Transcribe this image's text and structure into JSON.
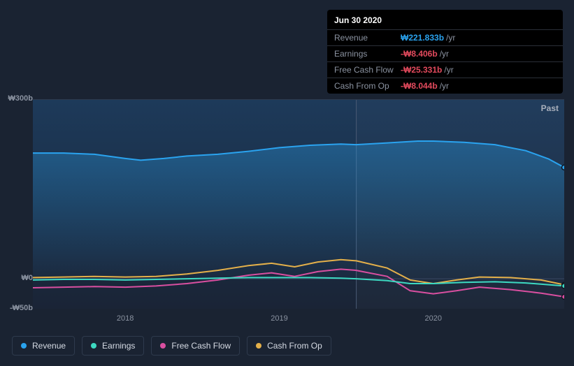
{
  "tooltip": {
    "date": "Jun 30 2020",
    "rows": [
      {
        "label": "Revenue",
        "value": "₩221.833b",
        "unit": "/yr",
        "color": "#2aa3ef"
      },
      {
        "label": "Earnings",
        "value": "-₩8.406b",
        "unit": "/yr",
        "color": "#e34a5d"
      },
      {
        "label": "Free Cash Flow",
        "value": "-₩25.331b",
        "unit": "/yr",
        "color": "#e34a5d"
      },
      {
        "label": "Cash From Op",
        "value": "-₩8.044b",
        "unit": "/yr",
        "color": "#e34a5d"
      }
    ]
  },
  "chart": {
    "type": "area-line",
    "ylim": [
      -50,
      300
    ],
    "y_ticks": [
      {
        "v": 300,
        "label": "₩300b"
      },
      {
        "v": 0,
        "label": "₩0"
      },
      {
        "v": -50,
        "label": "-₩50b"
      }
    ],
    "x_ticks": [
      {
        "t": 2018,
        "label": "2018"
      },
      {
        "t": 2019,
        "label": "2019"
      },
      {
        "t": 2020,
        "label": "2020"
      }
    ],
    "xlim": [
      2017.4,
      2020.85
    ],
    "past_label": "Past",
    "cursor_t": 2019.5,
    "background_color": "#1a2332",
    "plot_gradient_top": "#1d3a5a",
    "plot_gradient_bottom": "#1a2436",
    "grid_color": "#2e3a4d",
    "zero_line_color": "#3a4a63",
    "series": [
      {
        "name": "Revenue",
        "color": "#2aa3ef",
        "fill": true,
        "fill_opacity": 0.18,
        "width": 2,
        "points": [
          [
            2017.4,
            210
          ],
          [
            2017.6,
            210
          ],
          [
            2017.8,
            208
          ],
          [
            2018.0,
            201
          ],
          [
            2018.1,
            198
          ],
          [
            2018.25,
            201
          ],
          [
            2018.4,
            205
          ],
          [
            2018.6,
            208
          ],
          [
            2018.8,
            213
          ],
          [
            2019.0,
            219
          ],
          [
            2019.2,
            223
          ],
          [
            2019.4,
            225
          ],
          [
            2019.5,
            224
          ],
          [
            2019.7,
            227
          ],
          [
            2019.9,
            230
          ],
          [
            2020.0,
            230
          ],
          [
            2020.2,
            228
          ],
          [
            2020.4,
            224
          ],
          [
            2020.6,
            214
          ],
          [
            2020.75,
            200
          ],
          [
            2020.85,
            186
          ]
        ]
      },
      {
        "name": "Cash From Op",
        "color": "#e4b04a",
        "fill": false,
        "width": 2,
        "points": [
          [
            2017.4,
            2
          ],
          [
            2017.6,
            3
          ],
          [
            2017.8,
            4
          ],
          [
            2018.0,
            3
          ],
          [
            2018.2,
            4
          ],
          [
            2018.4,
            8
          ],
          [
            2018.6,
            14
          ],
          [
            2018.8,
            22
          ],
          [
            2018.95,
            26
          ],
          [
            2019.1,
            20
          ],
          [
            2019.25,
            28
          ],
          [
            2019.4,
            32
          ],
          [
            2019.5,
            30
          ],
          [
            2019.7,
            18
          ],
          [
            2019.85,
            -2
          ],
          [
            2020.0,
            -8
          ],
          [
            2020.15,
            -2
          ],
          [
            2020.3,
            3
          ],
          [
            2020.5,
            2
          ],
          [
            2020.7,
            -2
          ],
          [
            2020.85,
            -10
          ]
        ]
      },
      {
        "name": "Free Cash Flow",
        "color": "#d94fa0",
        "fill": false,
        "width": 2,
        "points": [
          [
            2017.4,
            -15
          ],
          [
            2017.6,
            -14
          ],
          [
            2017.8,
            -13
          ],
          [
            2018.0,
            -14
          ],
          [
            2018.2,
            -12
          ],
          [
            2018.4,
            -8
          ],
          [
            2018.6,
            -2
          ],
          [
            2018.8,
            6
          ],
          [
            2018.95,
            10
          ],
          [
            2019.1,
            4
          ],
          [
            2019.25,
            12
          ],
          [
            2019.4,
            16
          ],
          [
            2019.5,
            14
          ],
          [
            2019.7,
            4
          ],
          [
            2019.85,
            -20
          ],
          [
            2020.0,
            -25
          ],
          [
            2020.15,
            -20
          ],
          [
            2020.3,
            -14
          ],
          [
            2020.5,
            -18
          ],
          [
            2020.7,
            -24
          ],
          [
            2020.85,
            -30
          ]
        ]
      },
      {
        "name": "Earnings",
        "color": "#3dd9c1",
        "fill": false,
        "width": 2,
        "points": [
          [
            2017.4,
            -2
          ],
          [
            2017.6,
            -1
          ],
          [
            2017.8,
            -1
          ],
          [
            2018.0,
            -2
          ],
          [
            2018.2,
            -1
          ],
          [
            2018.4,
            0
          ],
          [
            2018.6,
            1
          ],
          [
            2018.8,
            2
          ],
          [
            2019.0,
            2
          ],
          [
            2019.2,
            2
          ],
          [
            2019.4,
            1
          ],
          [
            2019.5,
            0
          ],
          [
            2019.7,
            -3
          ],
          [
            2019.85,
            -8
          ],
          [
            2020.0,
            -8
          ],
          [
            2020.2,
            -6
          ],
          [
            2020.4,
            -5
          ],
          [
            2020.6,
            -7
          ],
          [
            2020.85,
            -12
          ]
        ]
      }
    ]
  },
  "legend": [
    {
      "label": "Revenue",
      "color": "#2aa3ef"
    },
    {
      "label": "Earnings",
      "color": "#3dd9c1"
    },
    {
      "label": "Free Cash Flow",
      "color": "#d94fa0"
    },
    {
      "label": "Cash From Op",
      "color": "#e4b04a"
    }
  ]
}
